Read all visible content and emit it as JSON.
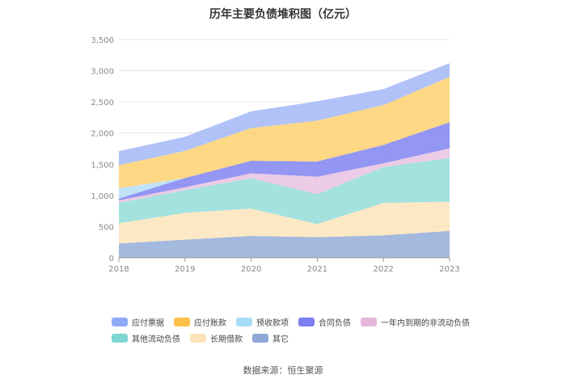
{
  "chart_data": {
    "type": "area",
    "stacked": true,
    "title": "历年主要负债堆积图（亿元）",
    "categories": [
      "2018",
      "2019",
      "2020",
      "2021",
      "2022",
      "2023"
    ],
    "y_ticks": [
      "0",
      "500",
      "1,000",
      "1,500",
      "2,000",
      "2,500",
      "3,000",
      "3,500"
    ],
    "ylim": [
      0,
      3500
    ],
    "grid": true,
    "legend_position": "bottom",
    "series": [
      {
        "name": "其它",
        "color": "#8fa9d6",
        "values": [
          230,
          290,
          350,
          330,
          360,
          430
        ]
      },
      {
        "name": "长期借款",
        "color": "#fde3b8",
        "values": [
          325,
          430,
          440,
          210,
          520,
          470
        ]
      },
      {
        "name": "其他流动负债",
        "color": "#8fdcd8",
        "values": [
          325,
          365,
          485,
          480,
          575,
          700
        ]
      },
      {
        "name": "一年内到期的非流动负债",
        "color": "#e8bfe0",
        "values": [
          40,
          45,
          80,
          280,
          60,
          155
        ]
      },
      {
        "name": "合同负债",
        "color": "#7b7ff0",
        "values": [
          30,
          150,
          200,
          245,
          295,
          420
        ]
      },
      {
        "name": "预收款项",
        "color": "#b2ddf6",
        "values": [
          165,
          0,
          0,
          0,
          0,
          0
        ]
      },
      {
        "name": "应付账款",
        "color": "#fecf6a",
        "values": [
          370,
          435,
          525,
          655,
          640,
          725
        ]
      },
      {
        "name": "应付票据",
        "color": "#9fb4f7",
        "values": [
          225,
          225,
          270,
          310,
          255,
          220
        ]
      }
    ]
  },
  "legend": {
    "rows": [
      [
        {
          "label": "应付票据",
          "color": "#8fa9f6"
        },
        {
          "label": "应付账款",
          "color": "#fdc14a"
        },
        {
          "label": "预收款项",
          "color": "#a9dcf6"
        },
        {
          "label": "合同负债",
          "color": "#7b7ff0"
        },
        {
          "label": "一年内到期的非流动负债",
          "color": "#e6b6dd"
        }
      ],
      [
        {
          "label": "其他流动负债",
          "color": "#7fd6d2"
        },
        {
          "label": "长期借款",
          "color": "#fde3b8"
        },
        {
          "label": "其它",
          "color": "#8fa9d6"
        }
      ]
    ]
  },
  "source": "数据来源：恒生聚源"
}
